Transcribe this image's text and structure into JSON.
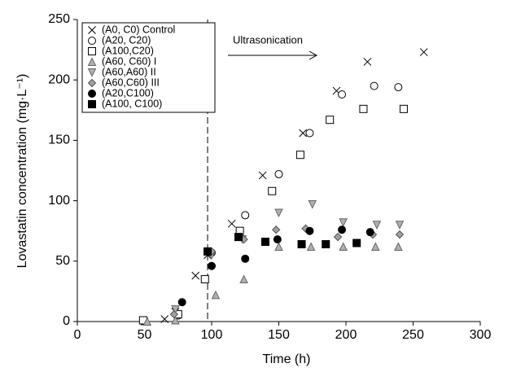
{
  "chart_data": {
    "type": "scatter",
    "xlabel": "Time (h)",
    "ylabel": "Lovastatin concentration (mg·L⁻¹)",
    "annotation": "Ultrasonication",
    "vline": 97,
    "xlim": [
      0,
      300
    ],
    "xticks": [
      0,
      50,
      100,
      150,
      200,
      250,
      300
    ],
    "ylim": [
      0,
      250
    ],
    "yticks": [
      0,
      50,
      100,
      150,
      200,
      250
    ],
    "legend": "upper left",
    "series": [
      {
        "name": "(A0, C0) Control",
        "marker": "x",
        "color": "#000000",
        "x": [
          50,
          65,
          73,
          88,
          97,
          115,
          138,
          168,
          193,
          216,
          258
        ],
        "values": [
          0,
          2,
          8,
          38,
          55,
          81,
          121,
          156,
          191,
          215,
          223
        ]
      },
      {
        "name": "(A20, C20)",
        "marker": "circle-open",
        "color": "#000000",
        "x": [
          50,
          75,
          100,
          125,
          150,
          173,
          197,
          221,
          239
        ],
        "values": [
          0,
          5,
          57,
          88,
          122,
          156,
          188,
          195,
          194
        ]
      },
      {
        "name": "(A100,C20)",
        "marker": "square-open",
        "color": "#000000",
        "x": [
          49,
          75,
          95,
          121,
          145,
          166,
          188,
          213,
          243
        ],
        "values": [
          1,
          6,
          35,
          75,
          108,
          138,
          167,
          176,
          176
        ]
      },
      {
        "name": "(A60, C60) I",
        "marker": "triangle-up",
        "color": "#b0b0b0",
        "x": [
          52,
          73,
          103,
          124,
          150,
          174,
          198,
          222,
          239
        ],
        "values": [
          0,
          1,
          22,
          35,
          62,
          62,
          62,
          62,
          62
        ]
      },
      {
        "name": "(A60,A60) II",
        "marker": "triangle-down",
        "color": "#b0b0b0",
        "x": [
          73,
          100,
          123,
          150,
          175,
          198,
          223,
          240
        ],
        "values": [
          10,
          55,
          68,
          90,
          97,
          82,
          80,
          80
        ]
      },
      {
        "name": "(A60,C60) III",
        "marker": "diamond",
        "color": "#a0a0a0",
        "x": [
          72,
          100,
          124,
          148,
          170,
          194,
          220,
          240
        ],
        "values": [
          6,
          58,
          68,
          76,
          77,
          70,
          72,
          72
        ]
      },
      {
        "name": "(A20,C100)",
        "marker": "circle-filled",
        "color": "#000000",
        "x": [
          78,
          100,
          125,
          149,
          173,
          197,
          218
        ],
        "values": [
          16,
          46,
          52,
          68,
          75,
          76,
          74
        ]
      },
      {
        "name": "(A100, C100)",
        "marker": "square-filled",
        "color": "#000000",
        "x": [
          97,
          120,
          140,
          167,
          185,
          208
        ],
        "values": [
          58,
          70,
          66,
          64,
          64,
          65
        ]
      }
    ]
  }
}
